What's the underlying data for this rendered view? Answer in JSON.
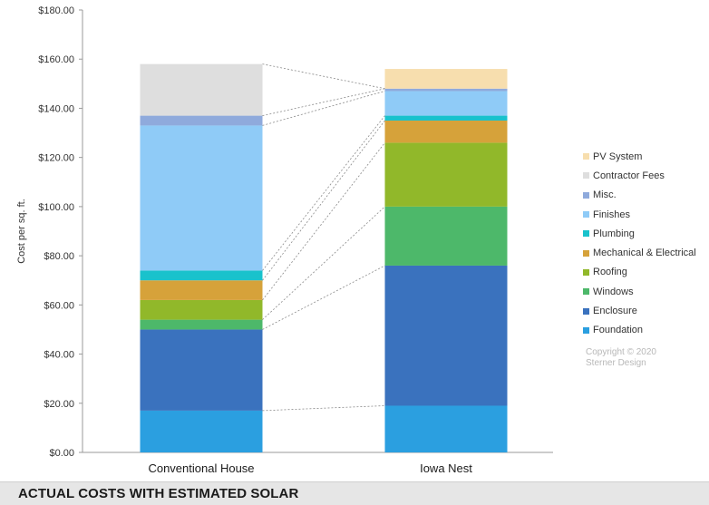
{
  "footer": {
    "title": "ACTUAL COSTS WITH ESTIMATED SOLAR"
  },
  "copyright": {
    "line1": "Copyright © 2020",
    "line2": "Sterner Design"
  },
  "chart_data": {
    "type": "bar",
    "stacked": true,
    "title": "",
    "xlabel": "",
    "ylabel": "Cost per sq. ft.",
    "ylim": [
      0,
      180
    ],
    "yticks": [
      0,
      20,
      40,
      60,
      80,
      100,
      120,
      140,
      160,
      180
    ],
    "ytick_labels": [
      "$0.00",
      "$20.00",
      "$40.00",
      "$60.00",
      "$80.00",
      "$100.00",
      "$120.00",
      "$140.00",
      "$160.00",
      "$180.00"
    ],
    "categories": [
      "Conventional House",
      "Iowa Nest"
    ],
    "grid": false,
    "legend_position": "right",
    "series": [
      {
        "name": "Foundation",
        "color": "#2b9fe0",
        "values": [
          17,
          19
        ]
      },
      {
        "name": "Enclosure",
        "color": "#3a72be",
        "values": [
          33,
          57
        ]
      },
      {
        "name": "Windows",
        "color": "#4db86a",
        "values": [
          4,
          24
        ]
      },
      {
        "name": "Roofing",
        "color": "#91b82a",
        "values": [
          8,
          26
        ]
      },
      {
        "name": "Mechanical & Electrical",
        "color": "#d6a23a",
        "values": [
          8,
          9
        ]
      },
      {
        "name": "Plumbing",
        "color": "#19c2cc",
        "values": [
          4,
          2
        ]
      },
      {
        "name": "Finishes",
        "color": "#8fcbf7",
        "values": [
          59,
          10
        ]
      },
      {
        "name": "Misc.",
        "color": "#8faadc",
        "values": [
          4,
          1
        ]
      },
      {
        "name": "Contractor Fees",
        "color": "#dedede",
        "values": [
          21,
          0
        ]
      },
      {
        "name": "PV System",
        "color": "#f7deae",
        "values": [
          0,
          8
        ]
      }
    ]
  }
}
